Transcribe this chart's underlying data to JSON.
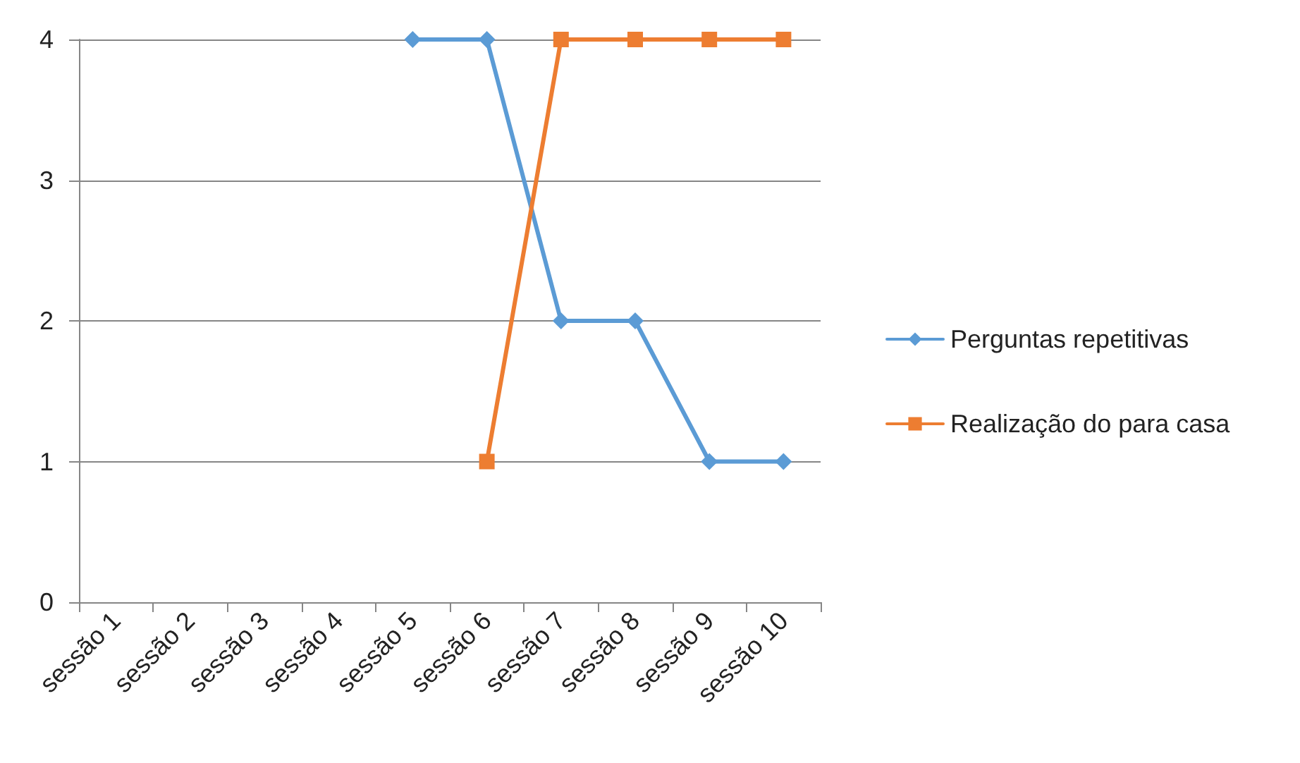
{
  "chart_data": {
    "type": "line",
    "categories": [
      "sessão 1",
      "sessão 2",
      "sessão 3",
      "sessão 4",
      "sessão 5",
      "sessão 6",
      "sessão 7",
      "sessão 8",
      "sessão 9",
      "sessão 10"
    ],
    "series": [
      {
        "name": "Perguntas repetitivas",
        "color": "#5b9bd5",
        "marker": "diamond",
        "values": [
          null,
          null,
          null,
          null,
          4,
          4,
          2,
          2,
          1,
          1
        ]
      },
      {
        "name": "Realização do para casa",
        "color": "#ed7d31",
        "marker": "square",
        "values": [
          null,
          null,
          null,
          null,
          null,
          1,
          4,
          4,
          4,
          4
        ]
      }
    ],
    "ylim": [
      0,
      4
    ],
    "yticks": [
      0,
      1,
      2,
      3,
      4
    ],
    "grid": "y",
    "legend": "right",
    "line_style": "solid"
  }
}
